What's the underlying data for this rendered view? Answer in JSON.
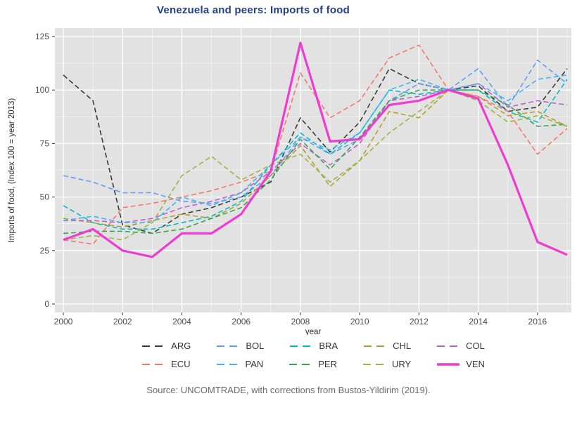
{
  "title": "Venezuela and peers: Imports of food",
  "source": "Source: UNCOMTRADE, with corrections from Bustos-Yildirim (2019).",
  "colors": {
    "title": "#23408e",
    "panel_bg": "#e2e2e2",
    "gridline": "#ffffff",
    "tick_text": "#4d4d4d",
    "axis_title": "#2b2b2b",
    "source_text": "#6a6a6a",
    "legend_text": "#333333"
  },
  "chart_data": {
    "type": "line",
    "title": "Venezuela and peers: Imports of food",
    "xlabel": "year",
    "ylabel": "Imports of food, (Index 100 = year 2013)",
    "x": [
      2000,
      2001,
      2002,
      2003,
      2004,
      2005,
      2006,
      2007,
      2008,
      2009,
      2010,
      2011,
      2012,
      2013,
      2014,
      2015,
      2016,
      2017
    ],
    "xticks": [
      2000,
      2002,
      2004,
      2006,
      2008,
      2010,
      2012,
      2014,
      2016
    ],
    "yticks": [
      0,
      25,
      50,
      75,
      100,
      125
    ],
    "xlim": [
      1999.7,
      2017.15
    ],
    "ylim": [
      0,
      125
    ],
    "grid": true,
    "legend_position": "bottom",
    "index_note": "Index 100 = year 2013",
    "series": [
      {
        "name": "ARG",
        "color": "#3b3b3b",
        "dashed": true,
        "width": 1.6,
        "values": [
          107,
          95,
          37,
          33,
          42,
          45,
          50,
          57,
          87,
          71,
          85,
          110,
          103,
          100,
          102,
          90,
          92,
          110
        ]
      },
      {
        "name": "BOL",
        "color": "#649cf5",
        "dashed": true,
        "width": 1.6,
        "values": [
          60,
          57,
          52,
          52,
          48,
          47,
          50,
          60,
          78,
          70,
          77,
          95,
          103,
          100,
          110,
          92,
          114,
          103
        ]
      },
      {
        "name": "BRA",
        "color": "#00bfc4",
        "dashed": true,
        "width": 1.6,
        "values": [
          46,
          38,
          35,
          35,
          38,
          41,
          48,
          65,
          80,
          70,
          80,
          100,
          98,
          100,
          100,
          90,
          85,
          105
        ]
      },
      {
        "name": "CHL",
        "color": "#b3a02e",
        "dashed": true,
        "width": 1.6,
        "values": [
          40,
          38,
          36,
          39,
          42,
          40,
          47,
          60,
          74,
          55,
          67,
          90,
          87,
          100,
          97,
          88,
          90,
          83
        ]
      },
      {
        "name": "COL",
        "color": "#c15ecf",
        "dashed": true,
        "width": 1.6,
        "values": [
          39,
          39,
          38,
          40,
          45,
          48,
          52,
          62,
          75,
          65,
          75,
          95,
          97,
          100,
          103,
          92,
          95,
          93
        ]
      },
      {
        "name": "ECU",
        "color": "#f8766d",
        "dashed": true,
        "width": 1.6,
        "values": [
          30,
          28,
          45,
          47,
          50,
          53,
          57,
          62,
          108,
          87,
          95,
          115,
          121,
          100,
          97,
          90,
          70,
          82
        ]
      },
      {
        "name": "PAN",
        "color": "#41b6f0",
        "dashed": true,
        "width": 1.6,
        "values": [
          39,
          41,
          38,
          38,
          50,
          46,
          52,
          65,
          78,
          72,
          80,
          100,
          105,
          100,
          103,
          95,
          105,
          107
        ]
      },
      {
        "name": "PER",
        "color": "#33a853",
        "dashed": true,
        "width": 1.6,
        "values": [
          33,
          34,
          34,
          33,
          35,
          40,
          45,
          58,
          77,
          63,
          78,
          95,
          100,
          100,
          100,
          93,
          83,
          84
        ]
      },
      {
        "name": "URY",
        "color": "#9fb445",
        "dashed": true,
        "width": 1.6,
        "values": [
          30,
          32,
          30,
          38,
          60,
          69,
          58,
          65,
          70,
          57,
          67,
          80,
          90,
          100,
          95,
          85,
          88,
          83
        ]
      },
      {
        "name": "VEN",
        "color": "#ef3bcf",
        "dashed": false,
        "width": 3.2,
        "values": [
          30,
          35,
          25,
          22,
          33,
          33,
          42,
          62,
          122,
          76,
          77,
          93,
          95,
          100,
          96,
          65,
          29,
          23
        ]
      }
    ]
  }
}
